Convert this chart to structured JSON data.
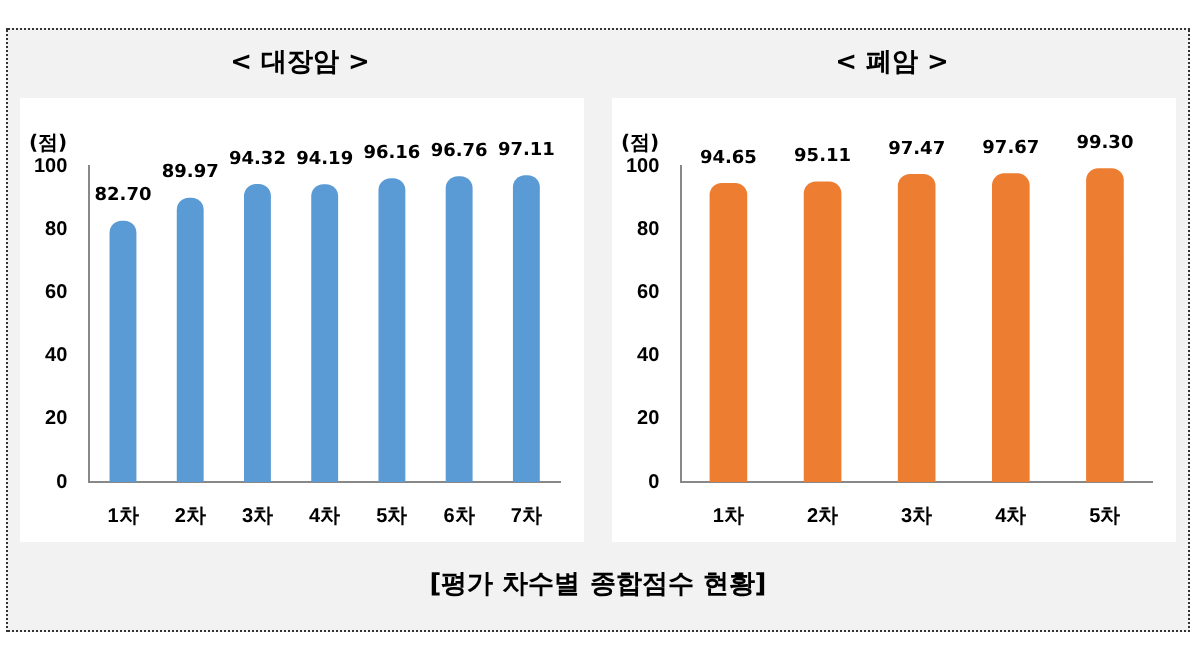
{
  "chart_data": [
    {
      "type": "bar",
      "title": "< 대장암 >",
      "ylabel": "(점)",
      "categories": [
        "1차",
        "2차",
        "3차",
        "4차",
        "5차",
        "6차",
        "7차"
      ],
      "values": [
        82.7,
        89.97,
        94.32,
        94.19,
        96.16,
        96.76,
        97.11
      ],
      "color": "#5b9bd5",
      "ylim": [
        0,
        100
      ],
      "yticks": [
        0,
        20,
        40,
        60,
        80,
        100
      ],
      "grid": false,
      "legend": false,
      "value_labels": [
        "82.70",
        "89.97",
        "94.32",
        "94.19",
        "96.16",
        "96.76",
        "97.11"
      ],
      "annotations": [
        "[평가 차수별 종합점수 현황]"
      ]
    },
    {
      "type": "bar",
      "title": "< 폐암 >",
      "ylabel": "(점)",
      "categories": [
        "1차",
        "2차",
        "3차",
        "4차",
        "5차"
      ],
      "values": [
        94.65,
        95.11,
        97.47,
        97.67,
        99.3
      ],
      "color": "#ed7d31",
      "ylim": [
        0,
        100
      ],
      "yticks": [
        0,
        20,
        40,
        60,
        80,
        100
      ],
      "grid": false,
      "legend": false,
      "value_labels": [
        "94.65",
        "95.11",
        "97.47",
        "97.67",
        "99.30"
      ]
    }
  ]
}
